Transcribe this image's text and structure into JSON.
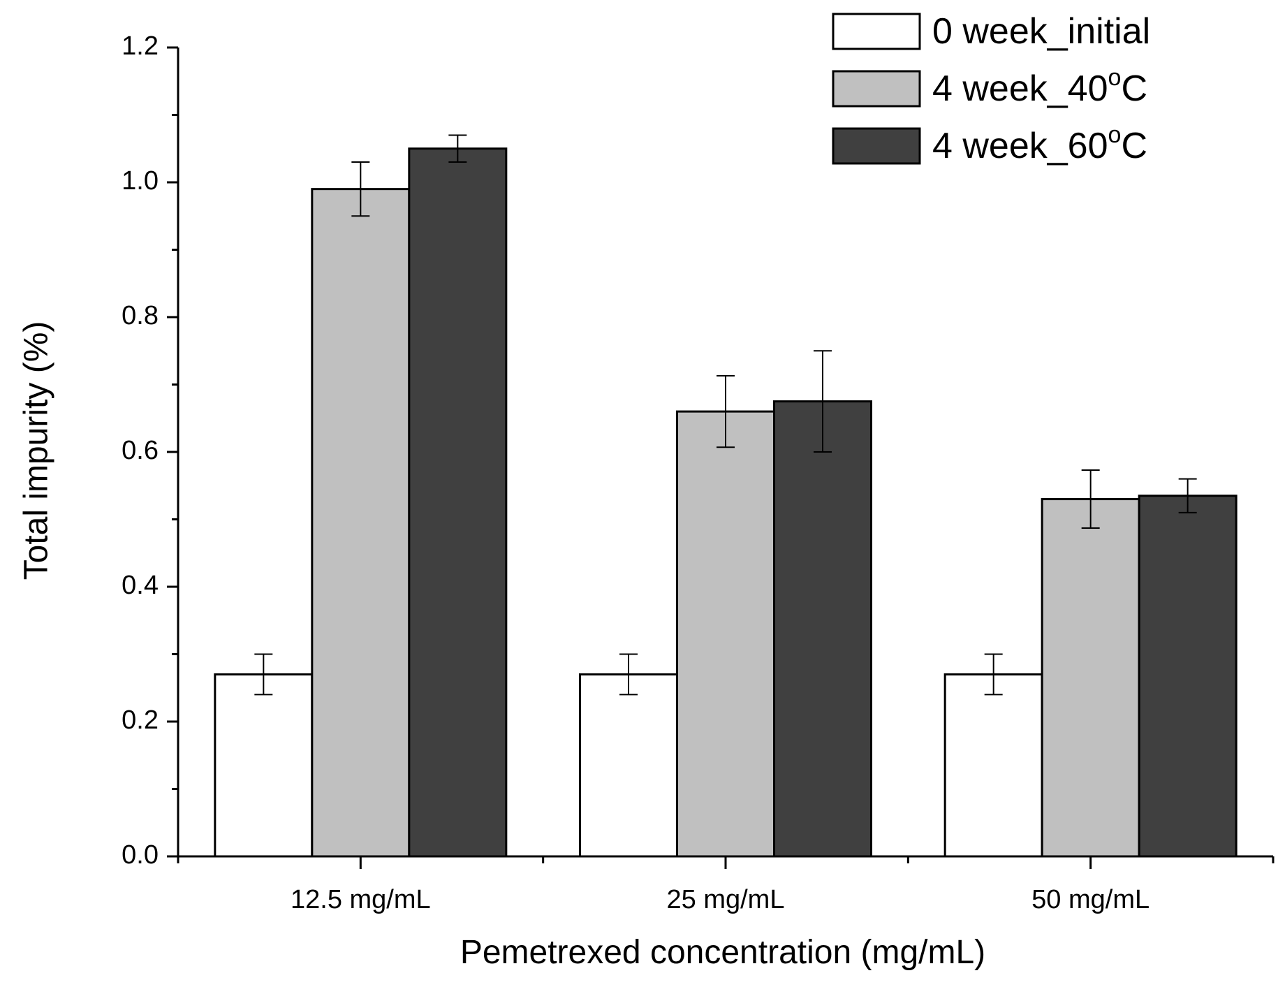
{
  "chart_data": {
    "type": "bar",
    "xlabel": "Pemetrexed concentration (mg/mL)",
    "ylabel": "Total impurity (%)",
    "categories": [
      "12.5 mg/mL",
      "25 mg/mL",
      "50 mg/mL"
    ],
    "ylim": [
      0,
      1.2
    ],
    "yticks": [
      "0.0",
      "0.2",
      "0.4",
      "0.6",
      "0.8",
      "1.0",
      "1.2"
    ],
    "legend_position": "top-right",
    "series": [
      {
        "name": "0 week_initial",
        "color": "#ffffff",
        "values": [
          0.27,
          0.27,
          0.27
        ],
        "errors": [
          0.03,
          0.03,
          0.03
        ]
      },
      {
        "name": "4 week_40°C",
        "legend_main": "4 week_40",
        "legend_sup": "o",
        "legend_unit": "C",
        "color": "#c0c0c0",
        "values": [
          0.99,
          0.66,
          0.53
        ],
        "errors": [
          0.04,
          0.053,
          0.043
        ]
      },
      {
        "name": "4 week_60°C",
        "legend_main": "4 week_60",
        "legend_sup": "o",
        "legend_unit": "C",
        "color": "#404040",
        "values": [
          1.05,
          0.675,
          0.535
        ],
        "errors": [
          0.02,
          0.075,
          0.025
        ]
      }
    ]
  }
}
